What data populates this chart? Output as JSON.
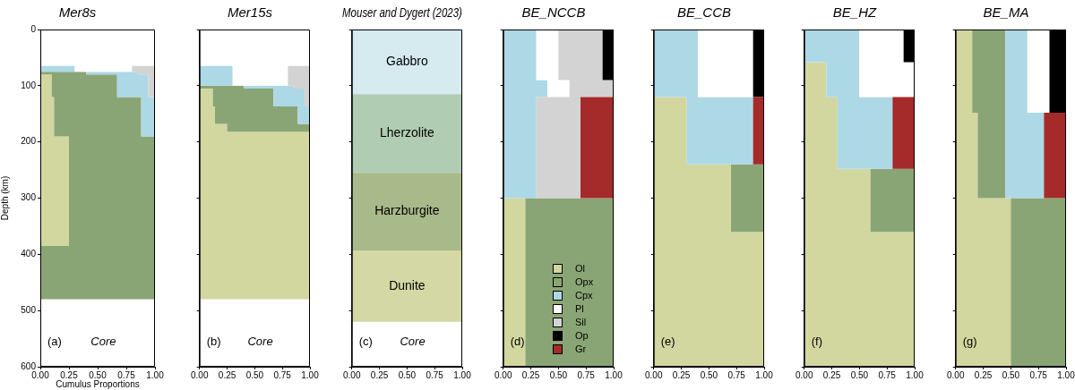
{
  "chart_data": [
    {
      "type": "area",
      "stacked": true,
      "orientation": "horizontal",
      "title": "Mer8s",
      "xlabel": "Cumulus Proportions",
      "ylabel": "Depth (km)",
      "xlim": [
        0,
        1
      ],
      "xticks": [
        {
          "value": 0,
          "label": "0.00"
        },
        {
          "value": 0.25,
          "label": "0.25"
        },
        {
          "value": 0.5,
          "label": "0.50"
        },
        {
          "value": 0.75,
          "label": "0.75"
        },
        {
          "value": 1,
          "label": "1.00"
        }
      ],
      "ylim": [
        600,
        0
      ],
      "yticks": [
        0,
        100,
        200,
        300,
        400,
        500,
        600
      ],
      "grid": false,
      "annotations": [
        "(a)",
        "Core"
      ],
      "x": [
        65,
        75,
        75,
        80,
        80,
        120,
        120,
        190,
        190,
        385,
        385,
        480
      ],
      "series": [
        {
          "color": "#d2d7a0",
          "values": [
            null,
            null,
            null,
            null,
            0.1,
            0.1,
            0.12,
            0.12,
            0.25,
            0.25,
            null,
            null
          ]
        },
        {
          "color": "#8aa575",
          "values": [
            null,
            null,
            0.4,
            0.4,
            0.57,
            0.57,
            0.76,
            0.76,
            0.75,
            0.75,
            1,
            1
          ]
        },
        {
          "color": "#add8e6",
          "values": [
            0.3,
            0.3,
            0.45,
            0.45,
            0.27,
            0.27,
            0.12,
            0.12,
            null,
            null,
            null,
            null
          ]
        },
        {
          "color": "#ffffff",
          "values": [
            0.5,
            0.5,
            null,
            null,
            null,
            null,
            null,
            null,
            null,
            null,
            null,
            null
          ]
        },
        {
          "color": "#d3d3d3",
          "values": [
            0.2,
            0.2,
            0.15,
            0.15,
            0.06,
            0.06,
            null,
            null,
            null,
            null,
            null,
            null
          ]
        }
      ]
    },
    {
      "type": "area",
      "stacked": true,
      "orientation": "horizontal",
      "title": "Mer15s",
      "xlim": [
        0,
        1
      ],
      "xticks": [
        {
          "value": 0,
          "label": "0.00"
        },
        {
          "value": 0.25,
          "label": "0.25"
        },
        {
          "value": 0.5,
          "label": "0.50"
        },
        {
          "value": 0.75,
          "label": "0.75"
        },
        {
          "value": 1,
          "label": "1.00"
        }
      ],
      "ylim": [
        600,
        0
      ],
      "yticks": [
        0,
        100,
        200,
        300,
        400,
        500,
        600
      ],
      "tick_labels": "x",
      "grid": false,
      "annotations": [
        "(b)",
        "Core"
      ],
      "x": [
        65,
        100,
        100,
        105,
        105,
        137,
        137,
        168,
        168,
        182,
        182,
        480
      ],
      "series": [
        {
          "color": "#d2d7a0",
          "values": [
            null,
            null,
            null,
            null,
            0.12,
            0.12,
            0.14,
            0.14,
            0.25,
            0.25,
            1,
            1
          ]
        },
        {
          "color": "#8aa575",
          "values": [
            null,
            null,
            0.4,
            0.4,
            0.55,
            0.55,
            0.75,
            0.75,
            0.75,
            0.75,
            null,
            null
          ]
        },
        {
          "color": "#add8e6",
          "values": [
            0.3,
            0.3,
            0.45,
            0.45,
            0.28,
            0.28,
            0.11,
            0.11,
            null,
            null,
            null,
            null
          ]
        },
        {
          "color": "#ffffff",
          "values": [
            0.5,
            0.5,
            null,
            null,
            null,
            null,
            null,
            null,
            null,
            null,
            null,
            null
          ]
        },
        {
          "color": "#d3d3d3",
          "values": [
            0.2,
            0.2,
            0.15,
            0.15,
            0.05,
            0.05,
            null,
            null,
            null,
            null,
            null,
            null
          ]
        }
      ]
    },
    {
      "type": "area",
      "title": "Mouser and Dygert (2023)",
      "xlim": [
        0,
        1
      ],
      "xticks": [
        {
          "value": 0,
          "label": "0.00"
        },
        {
          "value": 0.25,
          "label": "0.25"
        },
        {
          "value": 0.5,
          "label": "0.50"
        },
        {
          "value": 0.75,
          "label": "0.75"
        },
        {
          "value": 1,
          "label": "1.00"
        }
      ],
      "ylim": [
        600,
        0
      ],
      "yticks": [
        0,
        100,
        200,
        300,
        400,
        500,
        600
      ],
      "tick_labels": "x",
      "grid": false,
      "annotations": [
        "(c)",
        "Core"
      ],
      "bands": [
        {
          "axis": "y",
          "from": 0,
          "to": 115,
          "label": "Gabbro",
          "color": "#d6ebf0"
        },
        {
          "axis": "y",
          "from": 115,
          "to": 255,
          "label": "Lherzolite",
          "color": "#b0cdb4"
        },
        {
          "axis": "y",
          "from": 255,
          "to": 393,
          "label": "Harzburgite",
          "color": "#a8b98a"
        },
        {
          "axis": "y",
          "from": 393,
          "to": 520,
          "label": "Dunite",
          "color": "#d3d8a4"
        }
      ]
    },
    {
      "type": "area",
      "stacked": true,
      "orientation": "horizontal",
      "title": "BE_NCCB",
      "xlim": [
        0,
        1
      ],
      "xticks": [
        {
          "value": 0,
          "label": "0.00"
        },
        {
          "value": 0.25,
          "label": "0.25"
        },
        {
          "value": 0.5,
          "label": "0.50"
        },
        {
          "value": 0.75,
          "label": "0.75"
        },
        {
          "value": 1,
          "label": "1.00"
        }
      ],
      "ylim": [
        600,
        0
      ],
      "yticks": [
        0,
        100,
        200,
        300,
        400,
        500,
        600
      ],
      "tick_labels": "x",
      "grid": false,
      "legend": "bottom right",
      "annotations": [
        "(d)"
      ],
      "x": [
        0,
        90,
        90,
        120,
        120,
        300,
        300,
        600
      ],
      "series": [
        {
          "name": "Ol",
          "color": "#d2d7a0",
          "values": [
            null,
            null,
            null,
            null,
            null,
            null,
            0.2,
            0.2
          ]
        },
        {
          "name": "Opx",
          "color": "#8aa575",
          "values": [
            null,
            null,
            null,
            null,
            null,
            null,
            0.8,
            0.8
          ]
        },
        {
          "name": "Cpx",
          "color": "#add8e6",
          "values": [
            0.3,
            0.3,
            0.4,
            0.4,
            0.3,
            0.3,
            null,
            null
          ]
        },
        {
          "name": "Pl",
          "color": "#ffffff",
          "values": [
            0.2,
            0.2,
            0.2,
            0.2,
            null,
            null,
            null,
            null
          ]
        },
        {
          "name": "Sil",
          "color": "#d3d3d3",
          "values": [
            0.4,
            0.4,
            0.4,
            0.4,
            0.4,
            0.4,
            null,
            null
          ]
        },
        {
          "name": "Op",
          "color": "#000000",
          "values": [
            0.1,
            0.1,
            null,
            null,
            null,
            null,
            null,
            null
          ]
        },
        {
          "name": "Gr",
          "color": "#a52a2a",
          "values": [
            null,
            null,
            null,
            null,
            0.3,
            0.3,
            null,
            null
          ]
        }
      ]
    },
    {
      "type": "area",
      "stacked": true,
      "orientation": "horizontal",
      "title": "BE_CCB",
      "xlim": [
        0,
        1
      ],
      "xticks": [
        {
          "value": 0,
          "label": "0.00"
        },
        {
          "value": 0.25,
          "label": "0.25"
        },
        {
          "value": 0.5,
          "label": "0.50"
        },
        {
          "value": 0.75,
          "label": "0.75"
        },
        {
          "value": 1,
          "label": "1.00"
        }
      ],
      "ylim": [
        600,
        0
      ],
      "yticks": [
        0,
        100,
        200,
        300,
        400,
        500,
        600
      ],
      "tick_labels": "x",
      "grid": false,
      "annotations": [
        "(e)"
      ],
      "x": [
        0,
        120,
        120,
        240,
        240,
        360,
        360,
        600
      ],
      "series": [
        {
          "color": "#d2d7a0",
          "values": [
            null,
            null,
            0.3,
            0.3,
            0.7,
            0.7,
            1,
            1
          ]
        },
        {
          "color": "#8aa575",
          "values": [
            null,
            null,
            null,
            null,
            0.3,
            0.3,
            null,
            null
          ]
        },
        {
          "color": "#add8e6",
          "values": [
            0.4,
            0.4,
            0.6,
            0.6,
            null,
            null,
            null,
            null
          ]
        },
        {
          "color": "#ffffff",
          "values": [
            0.5,
            0.5,
            null,
            null,
            null,
            null,
            null,
            null
          ]
        },
        {
          "color": "#000000",
          "values": [
            0.1,
            0.1,
            null,
            null,
            null,
            null,
            null,
            null
          ]
        },
        {
          "color": "#a52a2a",
          "values": [
            null,
            null,
            0.1,
            0.1,
            null,
            null,
            null,
            null
          ]
        }
      ]
    },
    {
      "type": "area",
      "stacked": true,
      "orientation": "horizontal",
      "title": "BE_HZ",
      "xlim": [
        0,
        1
      ],
      "xticks": [
        {
          "value": 0,
          "label": "0.00"
        },
        {
          "value": 0.25,
          "label": "0.25"
        },
        {
          "value": 0.5,
          "label": "0.50"
        },
        {
          "value": 0.75,
          "label": "0.75"
        },
        {
          "value": 1,
          "label": "1.00"
        }
      ],
      "ylim": [
        600,
        0
      ],
      "yticks": [
        0,
        100,
        200,
        300,
        400,
        500,
        600
      ],
      "tick_labels": "x",
      "grid": false,
      "annotations": [
        "(f)"
      ],
      "x": [
        0,
        58,
        58,
        120,
        120,
        248,
        248,
        360,
        360,
        600
      ],
      "series": [
        {
          "color": "#d2d7a0",
          "values": [
            null,
            null,
            0.2,
            0.2,
            0.3,
            0.3,
            0.6,
            0.6,
            1,
            1
          ]
        },
        {
          "color": "#8aa575",
          "values": [
            null,
            null,
            null,
            null,
            null,
            null,
            0.4,
            0.4,
            null,
            null
          ]
        },
        {
          "color": "#add8e6",
          "values": [
            0.5,
            0.5,
            0.3,
            0.3,
            0.5,
            0.5,
            null,
            null,
            null,
            null
          ]
        },
        {
          "color": "#ffffff",
          "values": [
            0.4,
            0.4,
            0.5,
            0.5,
            null,
            null,
            null,
            null,
            null,
            null
          ]
        },
        {
          "color": "#000000",
          "values": [
            0.1,
            0.1,
            null,
            null,
            null,
            null,
            null,
            null,
            null,
            null
          ]
        },
        {
          "color": "#a52a2a",
          "values": [
            null,
            null,
            null,
            null,
            0.2,
            0.2,
            null,
            null,
            null,
            null
          ]
        }
      ]
    },
    {
      "type": "area",
      "stacked": true,
      "orientation": "horizontal",
      "title": "BE_MA",
      "xlim": [
        0,
        1
      ],
      "xticks": [
        {
          "value": 0,
          "label": "0.00"
        },
        {
          "value": 0.25,
          "label": "0.25"
        },
        {
          "value": 0.5,
          "label": "0.50"
        },
        {
          "value": 0.75,
          "label": "0.75"
        },
        {
          "value": 1,
          "label": "1.00"
        }
      ],
      "ylim": [
        600,
        0
      ],
      "yticks": [
        0,
        100,
        200,
        300,
        400,
        500,
        600
      ],
      "tick_labels": "x",
      "grid": false,
      "annotations": [
        "(g)"
      ],
      "x": [
        0,
        148,
        148,
        300,
        300,
        600
      ],
      "series": [
        {
          "color": "#d2d7a0",
          "values": [
            0.15,
            0.15,
            0.2,
            0.2,
            0.5,
            0.5
          ]
        },
        {
          "color": "#8aa575",
          "values": [
            0.3,
            0.3,
            0.25,
            0.25,
            0.5,
            0.5
          ]
        },
        {
          "color": "#add8e6",
          "values": [
            0.2,
            0.2,
            0.35,
            0.35,
            null,
            null
          ]
        },
        {
          "color": "#ffffff",
          "values": [
            0.2,
            0.2,
            null,
            null,
            null,
            null
          ]
        },
        {
          "color": "#000000",
          "values": [
            0.15,
            0.15,
            null,
            null,
            null,
            null
          ]
        },
        {
          "color": "#a52a2a",
          "values": [
            null,
            null,
            0.2,
            0.2,
            null,
            null
          ]
        }
      ]
    }
  ]
}
